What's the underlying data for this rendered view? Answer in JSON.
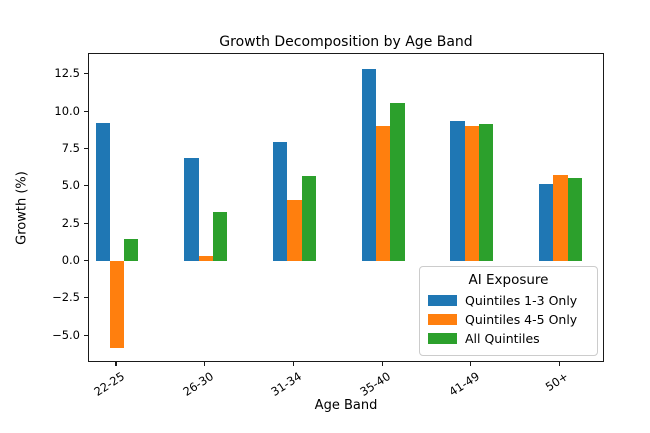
{
  "chart_data": {
    "type": "bar",
    "title": "Growth Decomposition by Age Band",
    "xlabel": "Age Band",
    "ylabel": "Growth (%)",
    "categories": [
      "22-25",
      "26-30",
      "31-34",
      "35-40",
      "41-49",
      "50+"
    ],
    "series": [
      {
        "name": "Quintiles 1-3 Only",
        "color": "#1f77b4",
        "values": [
          9.3,
          6.9,
          8.0,
          12.9,
          9.4,
          5.2
        ]
      },
      {
        "name": "Quintiles 4-5 Only",
        "color": "#ff7f0e",
        "values": [
          -5.8,
          0.4,
          4.1,
          9.1,
          9.1,
          5.8
        ]
      },
      {
        "name": "All Quintiles",
        "color": "#2ca02c",
        "values": [
          1.5,
          3.3,
          5.7,
          10.6,
          9.2,
          5.6
        ]
      }
    ],
    "ylim": [
      -6.8,
      13.9
    ],
    "yticks": [
      12.5,
      10.0,
      7.5,
      5.0,
      2.5,
      0.0,
      -2.5,
      -5.0
    ],
    "grid": false,
    "legend": {
      "title": "AI Exposure",
      "position": "lower right"
    },
    "frame_color": "#1a1a1a",
    "background_color": "#ffffff"
  }
}
